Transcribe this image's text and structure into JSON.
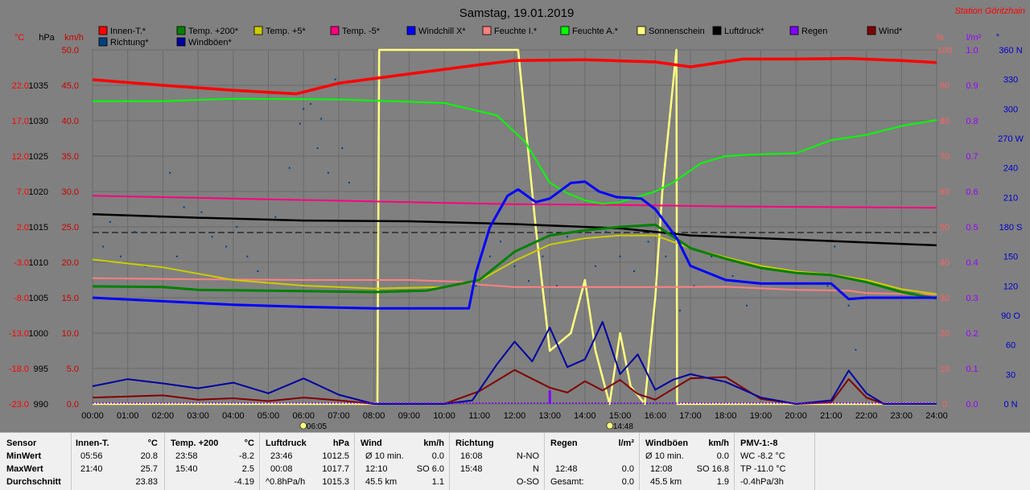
{
  "chart_data": {
    "type": "line",
    "title": "Samstag, 19.01.2019",
    "station": "Station Göritzhain",
    "x_ticks": [
      "00:00",
      "01:00",
      "02:00",
      "03:00",
      "04:00",
      "05:00",
      "06:00",
      "07:00",
      "08:00",
      "09:00",
      "10:00",
      "11:00",
      "12:00",
      "13:00",
      "14:00",
      "15:00",
      "16:00",
      "17:00",
      "18:00",
      "19:00",
      "20:00",
      "21:00",
      "22:00",
      "23:00",
      "24:00"
    ],
    "sunrise": "06:05",
    "sunset": "14:48",
    "left_axes": [
      {
        "unit": "°C",
        "color": "#ff0000",
        "ticks": [
          "22.0",
          "17.0",
          "12.0",
          "7.0",
          "2.0",
          "-3.0",
          "-8.0",
          "-13.0",
          "-18.0",
          "-23.0"
        ]
      },
      {
        "unit": "hPa",
        "color": "#000000",
        "ticks": [
          "1035",
          "1030",
          "1025",
          "1020",
          "1015",
          "1010",
          "1005",
          "1000",
          "995",
          "990"
        ]
      },
      {
        "unit": "km/h",
        "color": "#cc0000",
        "ticks": [
          "50.0",
          "45.0",
          "40.0",
          "35.0",
          "30.0",
          "25.0",
          "20.0",
          "15.0",
          "10.0",
          "5.0",
          "0.0"
        ]
      }
    ],
    "right_axes": [
      {
        "unit": "%",
        "color": "#ff6060",
        "ticks": [
          "100",
          "90",
          "80",
          "70",
          "60",
          "50",
          "40",
          "30",
          "20",
          "10",
          "0"
        ]
      },
      {
        "unit": "l/m²",
        "color": "#9900ff",
        "ticks": [
          "1.0",
          "0.9",
          "0.8",
          "0.7",
          "0.6",
          "0.5",
          "0.4",
          "0.3",
          "0.2",
          "0.1",
          "0.0"
        ]
      },
      {
        "unit": "°",
        "color": "#0000cc",
        "ticks": [
          "360 N",
          "330",
          "300",
          "270 W",
          "240",
          "210",
          "180 S",
          "150",
          "120",
          "90 O",
          "60",
          "30",
          "0 N"
        ]
      }
    ],
    "legend": [
      {
        "name": "Innen-T.*",
        "color": "#ff0000"
      },
      {
        "name": "Temp. +200*",
        "color": "#008000"
      },
      {
        "name": "Temp. +5*",
        "color": "#cccc00"
      },
      {
        "name": "Temp. -5*",
        "color": "#ff0080"
      },
      {
        "name": "Windchill X*",
        "color": "#0000ff"
      },
      {
        "name": "Feuchte I.*",
        "color": "#ff8080"
      },
      {
        "name": "Feuchte A.*",
        "color": "#00ff00"
      },
      {
        "name": "Sonnenschein",
        "color": "#ffff80"
      },
      {
        "name": "Luftdruck*",
        "color": "#000000"
      },
      {
        "name": "Regen",
        "color": "#8000ff"
      },
      {
        "name": "Wind*",
        "color": "#800000"
      },
      {
        "name": "Richtung*",
        "color": "#004080"
      },
      {
        "name": "Windböen*",
        "color": "#0000a0"
      }
    ],
    "series": [
      {
        "name": "Innen-T.*",
        "color": "#ff0000",
        "scale": "temp",
        "x": [
          0,
          2,
          4,
          5.8,
          7,
          9,
          11,
          12,
          14,
          16,
          17,
          18.5,
          20,
          21.5,
          23,
          24
        ],
        "y": [
          22.8,
          22.0,
          21.3,
          20.8,
          22.3,
          23.6,
          24.9,
          25.5,
          25.6,
          25.3,
          24.6,
          25.7,
          25.7,
          25.8,
          25.5,
          25.2
        ]
      },
      {
        "name": "Temp. +200*",
        "color": "#008000",
        "scale": "temp",
        "x": [
          0,
          2,
          3,
          5,
          8,
          9.5,
          11,
          12,
          13,
          14,
          15,
          16,
          17,
          18,
          19,
          20,
          21,
          22,
          23,
          24
        ],
        "y": [
          -6.4,
          -6.5,
          -6.9,
          -7.0,
          -7.2,
          -7.0,
          -5.5,
          -1.5,
          0.8,
          1.5,
          2.0,
          2.3,
          -1.0,
          -2.5,
          -3.8,
          -4.5,
          -4.8,
          -5.8,
          -7.2,
          -8.1
        ]
      },
      {
        "name": "Temp. +5*",
        "color": "#cccc00",
        "scale": "temp",
        "x": [
          0,
          2,
          4,
          6,
          8,
          10,
          11,
          12,
          13,
          14,
          15,
          16,
          17,
          18,
          19,
          20,
          21,
          22,
          23,
          24
        ],
        "y": [
          -2.6,
          -3.7,
          -5.5,
          -6.3,
          -6.7,
          -6.5,
          -5.6,
          -2.8,
          -0.5,
          0.4,
          0.8,
          0.8,
          -1.0,
          -2.3,
          -3.5,
          -4.3,
          -4.7,
          -5.5,
          -6.8,
          -7.5
        ]
      },
      {
        "name": "Temp. -5*",
        "color": "#ff0080",
        "scale": "temp",
        "x": [
          0,
          3,
          6,
          9,
          12,
          15,
          18,
          21,
          24
        ],
        "y": [
          6.4,
          6.1,
          5.8,
          5.5,
          5.2,
          5.1,
          4.9,
          4.8,
          4.7
        ]
      },
      {
        "name": "Windchill X*",
        "color": "#0000ff",
        "scale": "temp",
        "x": [
          0,
          2,
          4,
          6,
          8,
          10,
          10.7,
          10.9,
          11.3,
          11.8,
          12.1,
          12.6,
          13,
          13.6,
          14,
          14.4,
          14.9,
          15.6,
          16,
          16.6,
          17,
          18,
          19,
          20,
          21,
          21.5,
          22,
          23,
          24
        ],
        "y": [
          -8.0,
          -8.5,
          -9.0,
          -9.3,
          -9.5,
          -9.5,
          -9.5,
          -4.5,
          2.0,
          6.4,
          7.3,
          5.5,
          6.0,
          8.2,
          8.4,
          7.0,
          6.2,
          6.0,
          4.5,
          0.5,
          -3.5,
          -5.5,
          -6.0,
          -6.0,
          -6.0,
          -8.2,
          -8.0,
          -8.0,
          -8.0
        ]
      },
      {
        "name": "Feuchte I.*",
        "color": "#ff8080",
        "scale": "hum",
        "x": [
          0,
          3,
          6,
          9,
          10.5,
          11,
          12,
          14,
          16,
          18,
          20,
          21.5,
          22,
          24
        ],
        "y": [
          35.5,
          35.2,
          35.0,
          35.0,
          34.5,
          33.7,
          33.0,
          33.0,
          33.0,
          33.1,
          32.2,
          32.0,
          31.3,
          30.9
        ]
      },
      {
        "name": "Feuchte A.*",
        "color": "#00ff00",
        "scale": "hum",
        "x": [
          0,
          2,
          4,
          7,
          10,
          11.5,
          12.3,
          13,
          13.5,
          14,
          14.5,
          15,
          16,
          16.5,
          17.3,
          18,
          19,
          20,
          21,
          22,
          23,
          24
        ],
        "y": [
          85.5,
          85.5,
          86.2,
          86.0,
          85.0,
          81.5,
          74.0,
          62.5,
          59.5,
          57.5,
          56.5,
          57.0,
          60.0,
          62.5,
          68.0,
          70.0,
          70.5,
          70.8,
          74.5,
          76.0,
          78.5,
          80.2
        ]
      },
      {
        "name": "Sonnenschein",
        "color": "#ffff80",
        "scale": "hum",
        "x": [
          0,
          8.1,
          8.15,
          12.1,
          12.3,
          12.6,
          13.0,
          13.6,
          14.0,
          14.3,
          14.7,
          15.0,
          15.3,
          15.7,
          16.0,
          16.2,
          16.6,
          16.62,
          24
        ],
        "y": [
          0,
          0,
          100,
          100,
          80,
          50,
          15,
          20,
          35,
          15,
          0,
          20,
          5,
          0,
          30,
          60,
          100,
          0,
          0
        ]
      },
      {
        "name": "Luftdruck*",
        "color": "#000000",
        "scale": "press",
        "x": [
          0,
          3,
          6,
          9,
          12,
          15,
          17,
          20,
          22,
          24
        ],
        "y": [
          1016.8,
          1016.3,
          1015.9,
          1015.8,
          1015.4,
          1014.8,
          1013.8,
          1013.2,
          1012.8,
          1012.4
        ]
      },
      {
        "name": "Wind*",
        "color": "#800000",
        "scale": "wind",
        "x": [
          0,
          2,
          3,
          4,
          5,
          6,
          7,
          8,
          9,
          10,
          11,
          12,
          13,
          13.5,
          14,
          14.5,
          15,
          15.5,
          16,
          17,
          18,
          19,
          20,
          21,
          21.5,
          22,
          22.5,
          24
        ],
        "y": [
          0.9,
          1.2,
          0.6,
          0.8,
          0.4,
          0.9,
          0.5,
          0.0,
          0.0,
          0.0,
          1.8,
          4.8,
          2.3,
          1.6,
          3.2,
          1.9,
          3.4,
          1.4,
          0.6,
          3.6,
          3.8,
          0.7,
          0.0,
          0.2,
          3.5,
          0.9,
          0.0,
          0.0
        ]
      },
      {
        "name": "Windböen*",
        "color": "#0000a0",
        "scale": "wind",
        "x": [
          0,
          1,
          2,
          3,
          4,
          5,
          6,
          7,
          8,
          9,
          10,
          10.8,
          11.5,
          12,
          12.5,
          13,
          13.5,
          14,
          14.5,
          15,
          15.5,
          16,
          16.5,
          17,
          18,
          19,
          20,
          21,
          21.5,
          22,
          22.5,
          24
        ],
        "y": [
          2.5,
          3.5,
          2.9,
          2.2,
          3.0,
          1.5,
          3.6,
          1.3,
          0.0,
          0.0,
          0.0,
          0.5,
          5.6,
          8.8,
          6.0,
          10.8,
          5.2,
          6.3,
          11.6,
          4.2,
          7.0,
          2.0,
          3.4,
          4.2,
          3.1,
          0.9,
          0.0,
          0.5,
          4.7,
          1.5,
          0.0,
          0.0
        ]
      }
    ],
    "richtung": {
      "scale": "dir",
      "x": [
        0.3,
        0.5,
        0.8,
        1.2,
        1.5,
        1.9,
        2.2,
        2.4,
        2.6,
        3.1,
        3.4,
        3.8,
        4.1,
        4.4,
        4.7,
        5.2,
        5.6,
        5.9,
        6.0,
        6.2,
        6.4,
        6.5,
        6.7,
        6.9,
        7.1,
        7.3,
        10.9,
        11.3,
        11.6,
        12.0,
        12.4,
        12.8,
        13.2,
        13.5,
        13.9,
        14.3,
        14.6,
        15.0,
        15.4,
        15.8,
        16.3,
        16.7,
        17.1,
        17.6,
        18.2,
        18.6,
        20.9,
        21.1,
        21.3,
        21.5,
        21.7
      ],
      "y": [
        160,
        185,
        150,
        175,
        140,
        190,
        235,
        150,
        200,
        195,
        170,
        160,
        180,
        150,
        135,
        190,
        240,
        285,
        300,
        305,
        260,
        290,
        235,
        330,
        260,
        225,
        120,
        150,
        165,
        140,
        125,
        150,
        120,
        170,
        110,
        140,
        175,
        150,
        135,
        165,
        150,
        95,
        120,
        150,
        130,
        100,
        120,
        160,
        115,
        100,
        55
      ]
    },
    "regen": {
      "x": [
        13.0
      ],
      "y": [
        0.02
      ]
    },
    "ranges": {
      "temp": [
        -23,
        27
      ],
      "press": [
        990,
        1040
      ],
      "wind": [
        0,
        50
      ],
      "hum": [
        0,
        100
      ],
      "rain": [
        0,
        1
      ],
      "dir": [
        0,
        360
      ]
    }
  },
  "stats": {
    "sensor": {
      "title": "Sensor",
      "rows": [
        "MinWert",
        "MaxWert",
        "Durchschnitt"
      ]
    },
    "innen": {
      "title": "Innen-T.",
      "unit": "°C",
      "rows": [
        [
          "05:56",
          "20.8"
        ],
        [
          "21:40",
          "25.7"
        ],
        [
          "",
          "23.83"
        ]
      ]
    },
    "temp200": {
      "title": "Temp. +200",
      "unit": "°C",
      "rows": [
        [
          "23:58",
          "-8.2"
        ],
        [
          "15:40",
          "2.5"
        ],
        [
          "",
          "-4.19"
        ]
      ]
    },
    "luftdruck": {
      "title": "Luftdruck",
      "unit": "hPa",
      "rows": [
        [
          "23:46",
          "1012.5"
        ],
        [
          "00:08",
          "1017.7"
        ],
        [
          "^0.8hPa/h",
          "1015.3"
        ]
      ]
    },
    "wind": {
      "title": "Wind",
      "unit": "km/h",
      "rows": [
        [
          "Ø 10 min.",
          "0.0"
        ],
        [
          "12:10",
          "SO 6.0"
        ],
        [
          "45.5 km",
          "1.1"
        ]
      ]
    },
    "richtung": {
      "title": "Richtung",
      "unit": "",
      "rows": [
        [
          "16:08",
          "N-NO"
        ],
        [
          "15:48",
          "N"
        ],
        [
          "",
          "O-SO"
        ]
      ]
    },
    "regen": {
      "title": "Regen",
      "unit": "l/m²",
      "rows": [
        [
          "",
          ""
        ],
        [
          "12:48",
          "0.0"
        ],
        [
          "Gesamt:",
          "0.0"
        ]
      ]
    },
    "windboeen": {
      "title": "Windböen",
      "unit": "km/h",
      "rows": [
        [
          "Ø 10 min.",
          "0.0"
        ],
        [
          "12:08",
          "SO 16.8"
        ],
        [
          "45.5 km",
          "1.9"
        ]
      ]
    },
    "pmv": {
      "title": "PMV-1:-8",
      "rows": [
        "WC -8.2 °C",
        "TP -11.0 °C",
        "-0.4hPa/3h"
      ]
    }
  }
}
